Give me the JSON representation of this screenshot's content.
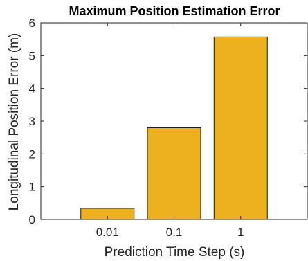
{
  "chart_data": {
    "type": "bar",
    "title": "Maximum Position Estimation Error",
    "xlabel": "Prediction Time Step (s)",
    "ylabel": "Longitudinal Position Error (m)",
    "categories": [
      "0.01",
      "0.1",
      "1"
    ],
    "values": [
      0.34,
      2.8,
      5.57
    ],
    "ylim": [
      0,
      6
    ],
    "yticks": [
      0,
      1,
      2,
      3,
      4,
      5,
      6
    ],
    "bar_color": "#EDB120",
    "grid": false,
    "legend": "none"
  }
}
